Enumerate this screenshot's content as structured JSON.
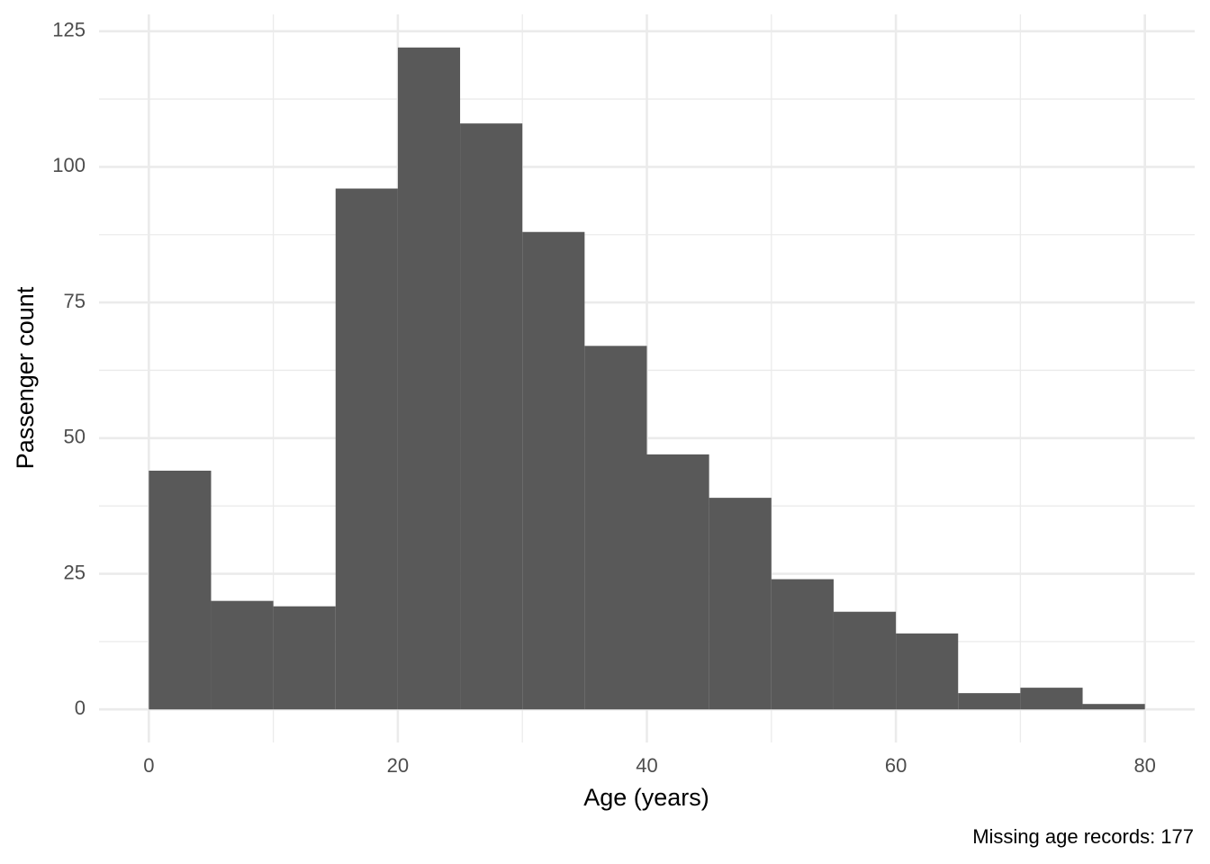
{
  "chart_data": {
    "type": "histogram",
    "x_label": "Age (years)",
    "y_label": "Passenger count",
    "caption": "Missing age records: 177",
    "bins": [
      0,
      5,
      10,
      15,
      20,
      25,
      30,
      35,
      40,
      45,
      50,
      55,
      60,
      65,
      70,
      75,
      80
    ],
    "counts": [
      44,
      20,
      19,
      96,
      122,
      108,
      88,
      67,
      47,
      39,
      24,
      18,
      14,
      3,
      4,
      1
    ],
    "color": "#595959",
    "xlim": [
      -4,
      84
    ],
    "xticks": [
      0,
      20,
      40,
      60,
      80
    ],
    "ylim": [
      -6.1,
      128.1
    ],
    "yticks": [
      0,
      25,
      50,
      75,
      100,
      125
    ],
    "grid": true
  }
}
